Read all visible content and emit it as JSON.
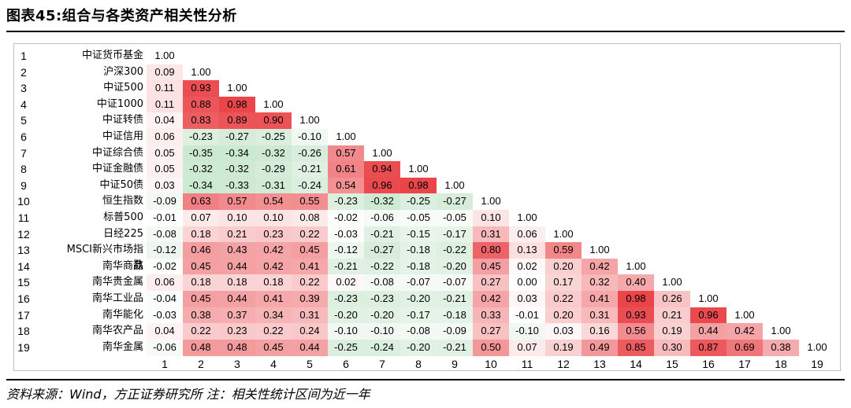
{
  "header": {
    "title": "图表45:组合与各类资产相关性分析"
  },
  "footer": {
    "source": "资料来源：Wind，方正证券研究所 注：相关性统计区间为近一年"
  },
  "colors": {
    "positive": "#e8393d",
    "negative": "#5cb86b",
    "neutral": "#ffffff"
  },
  "chart_data": {
    "type": "heatmap",
    "title": "",
    "row_numbers": [
      "1",
      "2",
      "3",
      "4",
      "5",
      "6",
      "7",
      "8",
      "9",
      "10",
      "11",
      "12",
      "13",
      "14",
      "15",
      "16",
      "17",
      "18",
      "19"
    ],
    "row_labels": [
      "中证货币基金",
      "沪深300",
      "中证500",
      "中证1000",
      "中证转债",
      "中证信用",
      "中证综合债",
      "中证金融债",
      "中证50债",
      "恒生指数",
      "标普500",
      "日经225",
      "MSCI新兴市场指数",
      "南华商品",
      "南华贵金属",
      "南华工业品",
      "南华能化",
      "南华农产品",
      "南华金属"
    ],
    "col_labels": [
      "1",
      "2",
      "3",
      "4",
      "5",
      "6",
      "7",
      "8",
      "9",
      "10",
      "11",
      "12",
      "13",
      "14",
      "15",
      "16",
      "17",
      "18",
      "19"
    ],
    "values": [
      [
        "1.00"
      ],
      [
        "0.09",
        "1.00"
      ],
      [
        "0.11",
        "0.93",
        "1.00"
      ],
      [
        "0.11",
        "0.88",
        "0.98",
        "1.00"
      ],
      [
        "0.04",
        "0.83",
        "0.89",
        "0.90",
        "1.00"
      ],
      [
        "0.06",
        "-0.23",
        "-0.27",
        "-0.25",
        "-0.10",
        "1.00"
      ],
      [
        "0.05",
        "-0.35",
        "-0.34",
        "-0.32",
        "-0.26",
        "0.57",
        "1.00"
      ],
      [
        "0.05",
        "-0.32",
        "-0.32",
        "-0.29",
        "-0.21",
        "0.61",
        "0.94",
        "1.00"
      ],
      [
        "0.03",
        "-0.34",
        "-0.33",
        "-0.31",
        "-0.24",
        "0.54",
        "0.96",
        "0.98",
        "1.00"
      ],
      [
        "-0.09",
        "0.63",
        "0.57",
        "0.54",
        "0.55",
        "-0.23",
        "-0.32",
        "-0.25",
        "-0.27",
        "1.00"
      ],
      [
        "-0.01",
        "0.07",
        "0.10",
        "0.10",
        "0.08",
        "-0.02",
        "-0.06",
        "-0.05",
        "-0.05",
        "0.10",
        "1.00"
      ],
      [
        "-0.08",
        "0.18",
        "0.21",
        "0.23",
        "0.22",
        "-0.03",
        "-0.21",
        "-0.15",
        "-0.17",
        "0.31",
        "0.06",
        "1.00"
      ],
      [
        "-0.12",
        "0.46",
        "0.43",
        "0.42",
        "0.45",
        "-0.12",
        "-0.27",
        "-0.18",
        "-0.22",
        "0.80",
        "0.13",
        "0.59",
        "1.00"
      ],
      [
        "-0.02",
        "0.45",
        "0.44",
        "0.42",
        "0.41",
        "-0.21",
        "-0.22",
        "-0.18",
        "-0.20",
        "0.45",
        "0.02",
        "0.20",
        "0.42",
        "1.00"
      ],
      [
        "0.06",
        "0.18",
        "0.18",
        "0.18",
        "0.22",
        "0.02",
        "-0.08",
        "-0.07",
        "-0.07",
        "0.27",
        "0.00",
        "0.17",
        "0.32",
        "0.40",
        "1.00"
      ],
      [
        "-0.04",
        "0.45",
        "0.44",
        "0.41",
        "0.39",
        "-0.23",
        "-0.23",
        "-0.20",
        "-0.21",
        "0.42",
        "0.03",
        "0.22",
        "0.41",
        "0.98",
        "0.26",
        "1.00"
      ],
      [
        "-0.03",
        "0.38",
        "0.37",
        "0.34",
        "0.31",
        "-0.20",
        "-0.20",
        "-0.17",
        "-0.18",
        "0.33",
        "-0.01",
        "0.20",
        "0.31",
        "0.93",
        "0.21",
        "0.96",
        "1.00"
      ],
      [
        "0.04",
        "0.22",
        "0.23",
        "0.22",
        "0.24",
        "-0.10",
        "-0.10",
        "-0.08",
        "-0.09",
        "0.27",
        "-0.10",
        "0.03",
        "0.16",
        "0.56",
        "0.19",
        "0.44",
        "0.42",
        "1.00"
      ],
      [
        "-0.06",
        "0.48",
        "0.48",
        "0.45",
        "0.44",
        "-0.25",
        "-0.24",
        "-0.20",
        "-0.21",
        "0.50",
        "0.07",
        "0.19",
        "0.49",
        "0.85",
        "0.30",
        "0.87",
        "0.69",
        "0.38",
        "1.00"
      ]
    ]
  }
}
